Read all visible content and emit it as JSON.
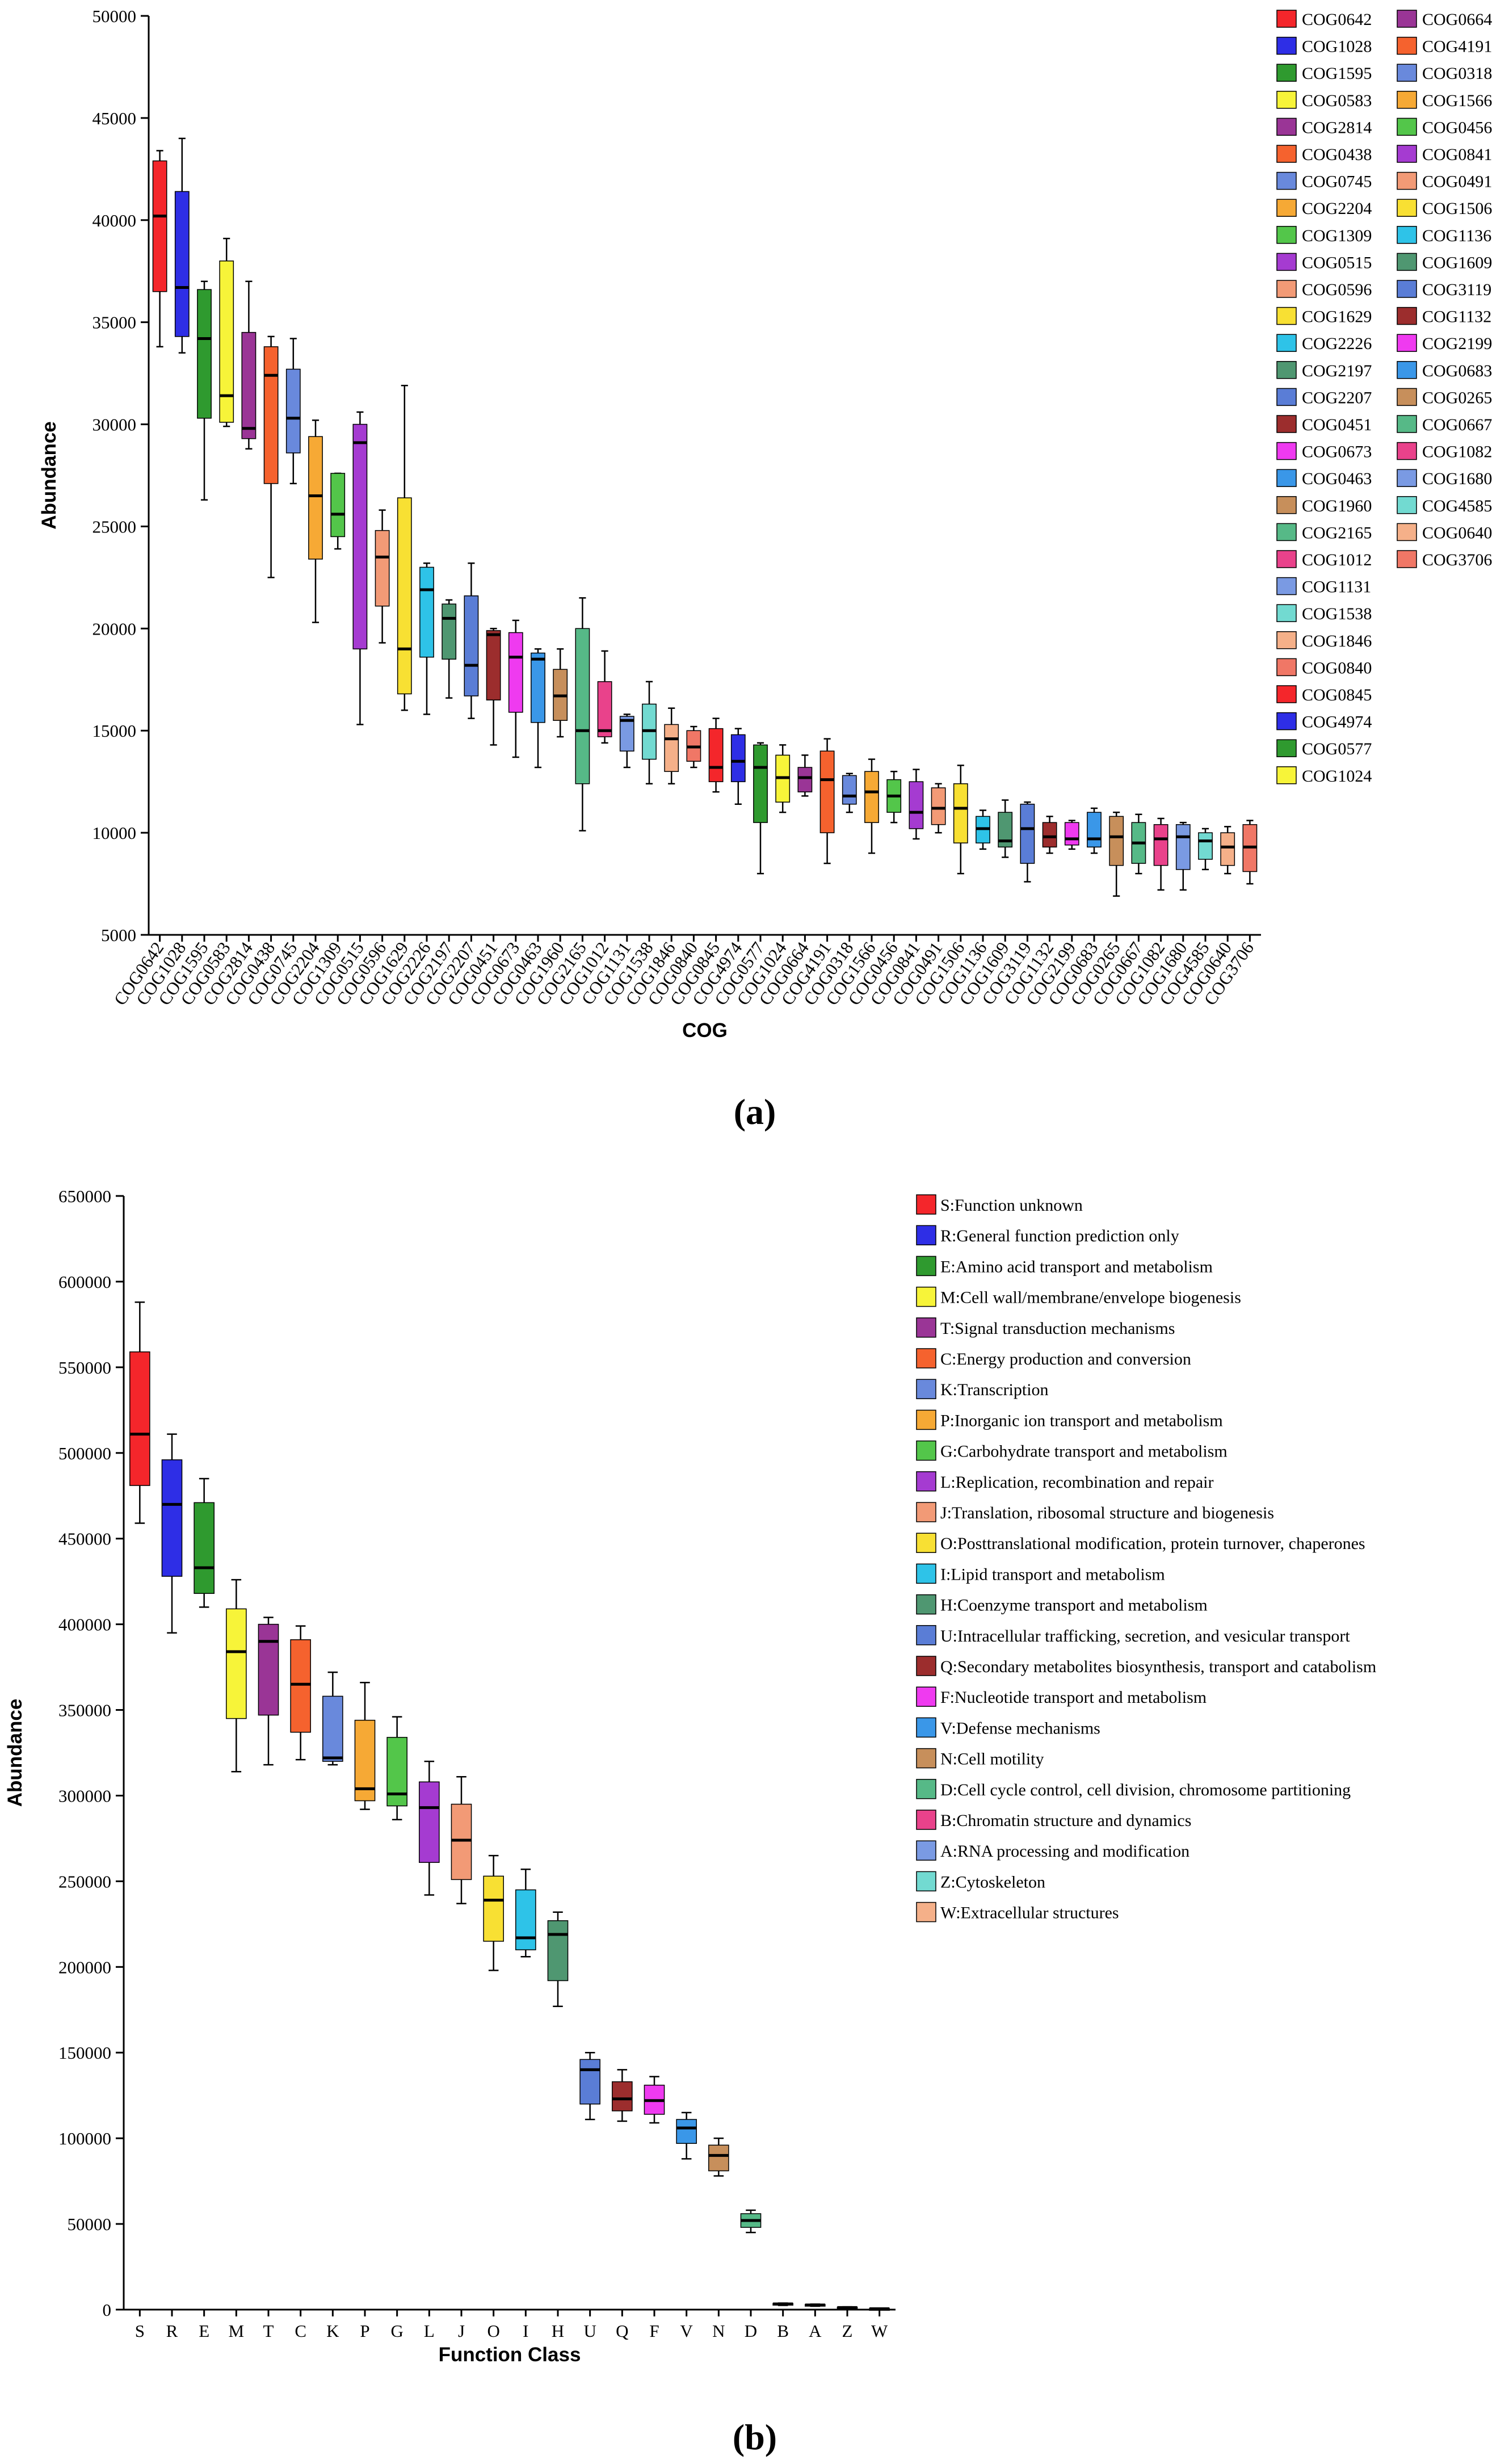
{
  "figure": {
    "panel_a_label": "(a)",
    "panel_b_label": "(b)"
  },
  "chart_data": [
    {
      "type": "box",
      "title": "",
      "xlabel": "COG",
      "ylabel": "Abundance",
      "ylim": [
        5000,
        50000
      ],
      "yticks": [
        5000,
        10000,
        15000,
        20000,
        25000,
        30000,
        35000,
        40000,
        45000,
        50000
      ],
      "categories": [
        "COG0642",
        "COG1028",
        "COG1595",
        "COG0583",
        "COG2814",
        "COG0438",
        "COG0745",
        "COG2204",
        "COG1309",
        "COG0515",
        "COG0596",
        "COG1629",
        "COG2226",
        "COG2197",
        "COG2207",
        "COG0451",
        "COG0673",
        "COG0463",
        "COG1960",
        "COG2165",
        "COG1012",
        "COG1131",
        "COG1538",
        "COG1846",
        "COG0840",
        "COG0845",
        "COG4974",
        "COG0577",
        "COG1024",
        "COG0664",
        "COG4191",
        "COG0318",
        "COG1566",
        "COG0456",
        "COG0841",
        "COG0491",
        "COG1506",
        "COG1136",
        "COG1609",
        "COG3119",
        "COG1132",
        "COG2199",
        "COG0683",
        "COG0265",
        "COG0667",
        "COG1082",
        "COG1680",
        "COG4585",
        "COG0640",
        "COG3706"
      ],
      "colors": [
        "#f4262b",
        "#2e2ee6",
        "#2f9a2f",
        "#f7f439",
        "#9a3596",
        "#f5622e",
        "#6989dc",
        "#f6a935",
        "#53c64a",
        "#a53bd1",
        "#f29a76",
        "#f8e033",
        "#2ec3e8",
        "#4f9771",
        "#5a7dd6",
        "#9c2d2d",
        "#ef3af0",
        "#3a97e8",
        "#c78f5b",
        "#56b987",
        "#e9428b",
        "#7a9ae3",
        "#72dad1",
        "#f5b089",
        "#f07766",
        "#f4262b",
        "#2e2ee6",
        "#2f9a2f",
        "#f7f439",
        "#9a3596",
        "#f5622e",
        "#6989dc",
        "#f6a935",
        "#53c64a",
        "#a53bd1",
        "#f29a76",
        "#f8e033",
        "#2ec3e8",
        "#4f9771",
        "#5a7dd6",
        "#9c2d2d",
        "#ef3af0",
        "#3a97e8",
        "#c78f5b",
        "#56b987",
        "#e9428b",
        "#7a9ae3",
        "#72dad1",
        "#f5b089",
        "#f07766"
      ],
      "series": [
        {
          "min": 33800,
          "q1": 36500,
          "median": 40200,
          "q3": 42900,
          "max": 43400
        },
        {
          "min": 33500,
          "q1": 34300,
          "median": 36700,
          "q3": 41400,
          "max": 44000
        },
        {
          "min": 26300,
          "q1": 30300,
          "median": 34200,
          "q3": 36600,
          "max": 37000
        },
        {
          "min": 29900,
          "q1": 30100,
          "median": 31400,
          "q3": 38000,
          "max": 39100
        },
        {
          "min": 28800,
          "q1": 29300,
          "median": 29800,
          "q3": 34500,
          "max": 37000
        },
        {
          "min": 22500,
          "q1": 27100,
          "median": 32400,
          "q3": 33800,
          "max": 34300
        },
        {
          "min": 27100,
          "q1": 28600,
          "median": 30300,
          "q3": 32700,
          "max": 34200
        },
        {
          "min": 20300,
          "q1": 23400,
          "median": 26500,
          "q3": 29400,
          "max": 30200
        },
        {
          "min": 23900,
          "q1": 24500,
          "median": 25600,
          "q3": 27600,
          "max": 27600
        },
        {
          "min": 15300,
          "q1": 19000,
          "median": 29100,
          "q3": 30000,
          "max": 30600
        },
        {
          "min": 19300,
          "q1": 21100,
          "median": 23500,
          "q3": 24800,
          "max": 25800
        },
        {
          "min": 16000,
          "q1": 16800,
          "median": 19000,
          "q3": 26400,
          "max": 31900
        },
        {
          "min": 15800,
          "q1": 18600,
          "median": 21900,
          "q3": 23000,
          "max": 23200
        },
        {
          "min": 16600,
          "q1": 18500,
          "median": 20500,
          "q3": 21200,
          "max": 21400
        },
        {
          "min": 15600,
          "q1": 16700,
          "median": 18200,
          "q3": 21600,
          "max": 23200
        },
        {
          "min": 14300,
          "q1": 16500,
          "median": 19700,
          "q3": 19900,
          "max": 20000
        },
        {
          "min": 13700,
          "q1": 15900,
          "median": 18600,
          "q3": 19800,
          "max": 20400
        },
        {
          "min": 13200,
          "q1": 15400,
          "median": 18500,
          "q3": 18800,
          "max": 19000
        },
        {
          "min": 14700,
          "q1": 15500,
          "median": 16700,
          "q3": 18000,
          "max": 19000
        },
        {
          "min": 10100,
          "q1": 12400,
          "median": 15000,
          "q3": 20000,
          "max": 21500
        },
        {
          "min": 14400,
          "q1": 14700,
          "median": 15000,
          "q3": 17400,
          "max": 18900
        },
        {
          "min": 13200,
          "q1": 14000,
          "median": 15500,
          "q3": 15700,
          "max": 15800
        },
        {
          "min": 12400,
          "q1": 13600,
          "median": 15000,
          "q3": 16300,
          "max": 17400
        },
        {
          "min": 12400,
          "q1": 13000,
          "median": 14600,
          "q3": 15300,
          "max": 16100
        },
        {
          "min": 13200,
          "q1": 13500,
          "median": 14200,
          "q3": 15000,
          "max": 15200
        },
        {
          "min": 12000,
          "q1": 12500,
          "median": 13200,
          "q3": 15100,
          "max": 15600
        },
        {
          "min": 11400,
          "q1": 12500,
          "median": 13500,
          "q3": 14800,
          "max": 15100
        },
        {
          "min": 8000,
          "q1": 10500,
          "median": 13200,
          "q3": 14300,
          "max": 14400
        },
        {
          "min": 11000,
          "q1": 11500,
          "median": 12700,
          "q3": 13800,
          "max": 14300
        },
        {
          "min": 11800,
          "q1": 12000,
          "median": 12700,
          "q3": 13200,
          "max": 13800
        },
        {
          "min": 8500,
          "q1": 10000,
          "median": 12600,
          "q3": 14000,
          "max": 14600
        },
        {
          "min": 11000,
          "q1": 11400,
          "median": 11800,
          "q3": 12800,
          "max": 12900
        },
        {
          "min": 9000,
          "q1": 10500,
          "median": 12000,
          "q3": 13000,
          "max": 13600
        },
        {
          "min": 10500,
          "q1": 11000,
          "median": 11800,
          "q3": 12600,
          "max": 13000
        },
        {
          "min": 9700,
          "q1": 10200,
          "median": 11000,
          "q3": 12500,
          "max": 13100
        },
        {
          "min": 10000,
          "q1": 10400,
          "median": 11200,
          "q3": 12200,
          "max": 12400
        },
        {
          "min": 8000,
          "q1": 9500,
          "median": 11200,
          "q3": 12400,
          "max": 13300
        },
        {
          "min": 9200,
          "q1": 9500,
          "median": 10200,
          "q3": 10800,
          "max": 11100
        },
        {
          "min": 8800,
          "q1": 9300,
          "median": 9600,
          "q3": 11000,
          "max": 11600
        },
        {
          "min": 7600,
          "q1": 8500,
          "median": 10200,
          "q3": 11400,
          "max": 11500
        },
        {
          "min": 9000,
          "q1": 9300,
          "median": 9800,
          "q3": 10500,
          "max": 10800
        },
        {
          "min": 9200,
          "q1": 9400,
          "median": 9700,
          "q3": 10500,
          "max": 10600
        },
        {
          "min": 9000,
          "q1": 9300,
          "median": 9700,
          "q3": 11000,
          "max": 11200
        },
        {
          "min": 6900,
          "q1": 8400,
          "median": 9800,
          "q3": 10800,
          "max": 11000
        },
        {
          "min": 8000,
          "q1": 8500,
          "median": 9500,
          "q3": 10500,
          "max": 10900
        },
        {
          "min": 7200,
          "q1": 8400,
          "median": 9700,
          "q3": 10400,
          "max": 10700
        },
        {
          "min": 7200,
          "q1": 8200,
          "median": 9800,
          "q3": 10400,
          "max": 10500
        },
        {
          "min": 8200,
          "q1": 8700,
          "median": 9600,
          "q3": 10000,
          "max": 10200
        },
        {
          "min": 8000,
          "q1": 8400,
          "median": 9300,
          "q3": 10000,
          "max": 10300
        },
        {
          "min": 7500,
          "q1": 8100,
          "median": 9300,
          "q3": 10400,
          "max": 10600
        }
      ],
      "legend": {
        "position": "right",
        "columns": 2
      }
    },
    {
      "type": "box",
      "title": "",
      "xlabel": "Function Class",
      "ylabel": "Abundance",
      "ylim": [
        0,
        650000
      ],
      "yticks": [
        0,
        50000,
        100000,
        150000,
        200000,
        250000,
        300000,
        350000,
        400000,
        450000,
        500000,
        550000,
        600000,
        650000
      ],
      "categories": [
        "S",
        "R",
        "E",
        "M",
        "T",
        "C",
        "K",
        "P",
        "G",
        "L",
        "J",
        "O",
        "I",
        "H",
        "U",
        "Q",
        "F",
        "V",
        "N",
        "D",
        "B",
        "A",
        "Z",
        "W"
      ],
      "colors": [
        "#f4262b",
        "#2e2ee6",
        "#2f9a2f",
        "#f7f439",
        "#9a3596",
        "#f5622e",
        "#6989dc",
        "#f6a935",
        "#53c64a",
        "#a53bd1",
        "#f29a76",
        "#f8e033",
        "#2ec3e8",
        "#4f9771",
        "#5a7dd6",
        "#9c2d2d",
        "#ef3af0",
        "#3a97e8",
        "#c78f5b",
        "#56b987",
        "#e9428b",
        "#7a9ae3",
        "#72dad1",
        "#f5b089"
      ],
      "series": [
        {
          "min": 459000,
          "q1": 481000,
          "median": 511000,
          "q3": 559000,
          "max": 588000
        },
        {
          "min": 395000,
          "q1": 428000,
          "median": 470000,
          "q3": 496000,
          "max": 511000
        },
        {
          "min": 410000,
          "q1": 418000,
          "median": 433000,
          "q3": 471000,
          "max": 485000
        },
        {
          "min": 314000,
          "q1": 345000,
          "median": 384000,
          "q3": 409000,
          "max": 426000
        },
        {
          "min": 318000,
          "q1": 347000,
          "median": 390000,
          "q3": 400000,
          "max": 404000
        },
        {
          "min": 321000,
          "q1": 337000,
          "median": 365000,
          "q3": 391000,
          "max": 399000
        },
        {
          "min": 318000,
          "q1": 320000,
          "median": 322000,
          "q3": 358000,
          "max": 372000
        },
        {
          "min": 292000,
          "q1": 297000,
          "median": 304000,
          "q3": 344000,
          "max": 366000
        },
        {
          "min": 286000,
          "q1": 294000,
          "median": 301000,
          "q3": 334000,
          "max": 346000
        },
        {
          "min": 242000,
          "q1": 261000,
          "median": 293000,
          "q3": 308000,
          "max": 320000
        },
        {
          "min": 237000,
          "q1": 251000,
          "median": 274000,
          "q3": 295000,
          "max": 311000
        },
        {
          "min": 198000,
          "q1": 215000,
          "median": 239000,
          "q3": 253000,
          "max": 265000
        },
        {
          "min": 206000,
          "q1": 210000,
          "median": 217000,
          "q3": 245000,
          "max": 257000
        },
        {
          "min": 177000,
          "q1": 192000,
          "median": 219000,
          "q3": 227000,
          "max": 232000
        },
        {
          "min": 111000,
          "q1": 120000,
          "median": 140000,
          "q3": 146000,
          "max": 150000
        },
        {
          "min": 110000,
          "q1": 116000,
          "median": 123000,
          "q3": 133000,
          "max": 140000
        },
        {
          "min": 109000,
          "q1": 114000,
          "median": 122000,
          "q3": 131000,
          "max": 136000
        },
        {
          "min": 88000,
          "q1": 97000,
          "median": 106000,
          "q3": 111000,
          "max": 115000
        },
        {
          "min": 78000,
          "q1": 81000,
          "median": 90000,
          "q3": 96000,
          "max": 100000
        },
        {
          "min": 45000,
          "q1": 48000,
          "median": 52000,
          "q3": 56000,
          "max": 58000
        },
        {
          "min": 2500,
          "q1": 3000,
          "median": 3300,
          "q3": 3600,
          "max": 3800
        },
        {
          "min": 2000,
          "q1": 2400,
          "median": 2700,
          "q3": 3000,
          "max": 3200
        },
        {
          "min": 800,
          "q1": 1000,
          "median": 1200,
          "q3": 1400,
          "max": 1600
        },
        {
          "min": 300,
          "q1": 400,
          "median": 500,
          "q3": 600,
          "max": 700
        }
      ],
      "legend_labels": [
        "S:Function unknown",
        "R:General function prediction only",
        "E:Amino acid transport and metabolism",
        "M:Cell wall/membrane/envelope biogenesis",
        "T:Signal transduction mechanisms",
        "C:Energy production and conversion",
        "K:Transcription",
        "P:Inorganic ion transport and metabolism",
        "G:Carbohydrate transport and metabolism",
        "L:Replication, recombination and repair",
        "J:Translation, ribosomal structure and biogenesis",
        "O:Posttranslational modification, protein turnover, chaperones",
        "I:Lipid transport and metabolism",
        "H:Coenzyme transport and metabolism",
        "U:Intracellular trafficking, secretion, and vesicular transport",
        "Q:Secondary metabolites biosynthesis, transport and catabolism",
        "F:Nucleotide transport and metabolism",
        "V:Defense mechanisms",
        "N:Cell motility",
        "D:Cell cycle control, cell division, chromosome partitioning",
        "B:Chromatin structure and dynamics",
        "A:RNA processing and modification",
        "Z:Cytoskeleton",
        "W:Extracellular structures"
      ],
      "legend": {
        "position": "right",
        "columns": 1
      }
    }
  ]
}
